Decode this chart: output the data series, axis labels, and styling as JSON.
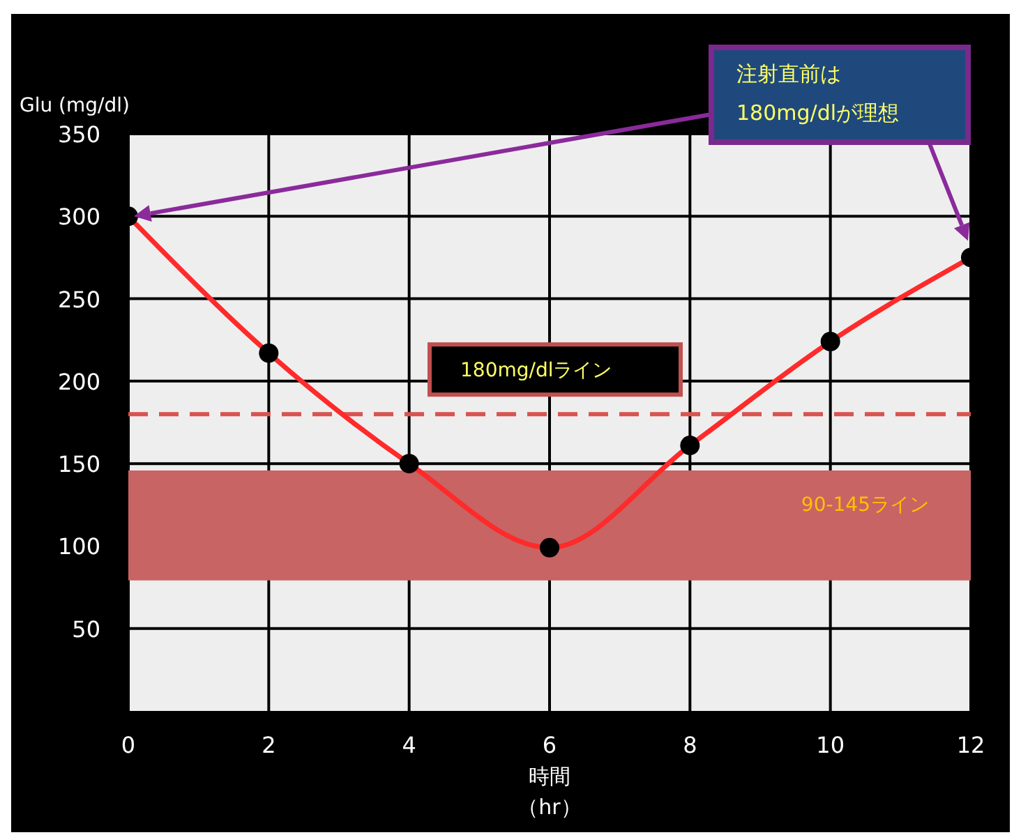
{
  "chart_data": {
    "type": "line",
    "ylabel": "Glu (mg/dl)",
    "xlabel": "時間（hr）",
    "x": [
      0,
      2,
      4,
      6,
      8,
      10,
      12
    ],
    "series": [
      {
        "color": "#ff2a2a",
        "values": [
          300,
          217,
          150,
          99,
          161,
          224,
          275
        ]
      }
    ],
    "xlim": [
      0,
      12
    ],
    "xticks": [
      0,
      2,
      4,
      6,
      8,
      10,
      12
    ],
    "ylim": [
      0,
      350
    ],
    "yticks": [
      50,
      100,
      150,
      200,
      250,
      300,
      350
    ],
    "grid": true,
    "marker": "circle",
    "ref_lines": [
      {
        "axis": "y",
        "value": 180,
        "label": "180mg/dlライン",
        "color": "#d9534f",
        "line_style": "dashed"
      }
    ],
    "bands": [
      {
        "axis": "y",
        "from": 80,
        "to": 145,
        "label": "90-145ライン",
        "color": "#c86464"
      }
    ],
    "annotations": [
      "注射直前は\n180mg/dlが理想"
    ]
  }
}
